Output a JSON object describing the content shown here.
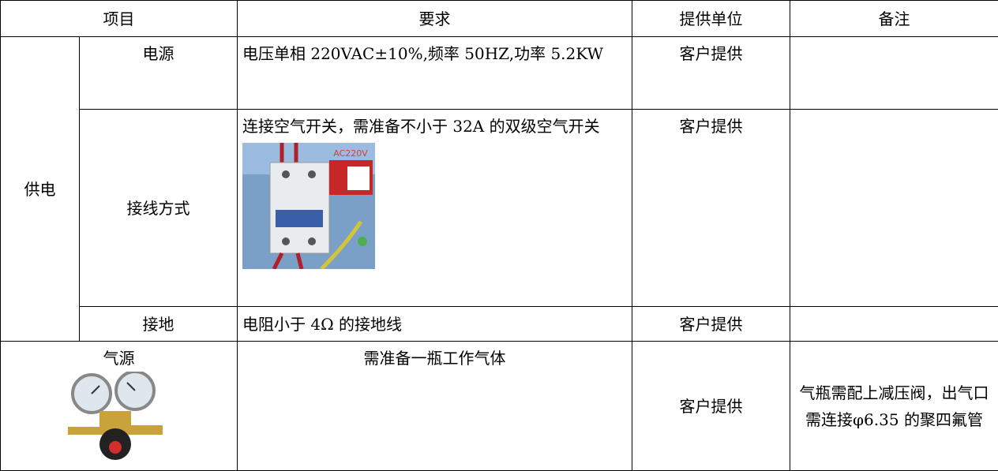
{
  "table": {
    "header": [
      "项目",
      "要求",
      "提供单位",
      "备注"
    ],
    "power": {
      "group": "供电",
      "items": [
        {
          "item": "电源",
          "requirement": "电压单相 220VAC±10%,频率 50HZ,功率 5.2KW",
          "provider": "客户提供"
        },
        {
          "item": "接线方式",
          "requirement": "连接空气开关，需准备不小于 32A 的双级空气开关",
          "image_label": "AC220V",
          "provider": "客户提供"
        },
        {
          "item": "接地",
          "requirement": "电阻小于 4Ω 的接地线",
          "provider": "客户提供"
        }
      ]
    },
    "gas": {
      "item": "气源",
      "requirement": "需准备一瓶工作气体",
      "provider": "客户提供",
      "note": "气瓶需配上减压阀，出气口需连接φ6.35 的聚四氟管"
    }
  }
}
